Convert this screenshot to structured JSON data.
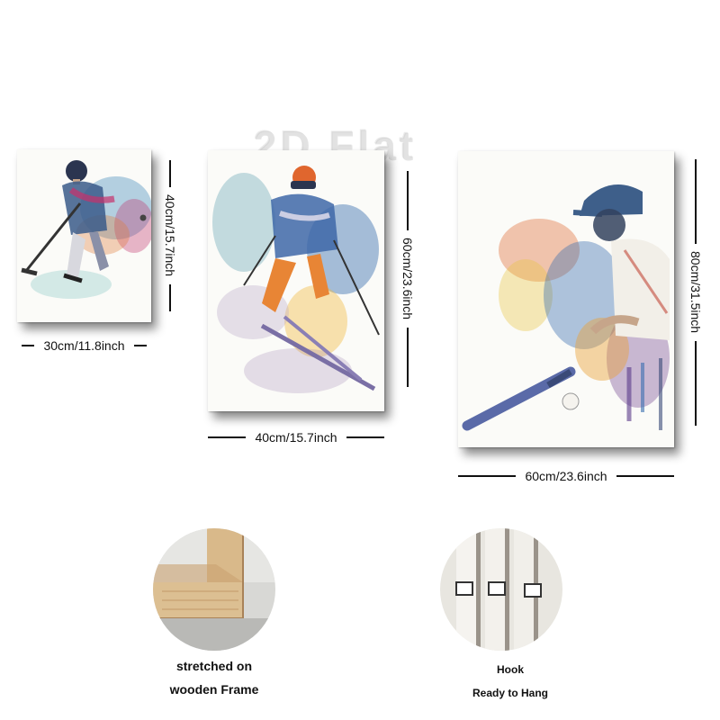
{
  "watermark": "2D Flat",
  "prints": [
    {
      "subject": "hockey-player",
      "width_label": "30cm/11.8inch",
      "height_label": "40cm/15.7inch"
    },
    {
      "subject": "skier",
      "width_label": "40cm/15.7inch",
      "height_label": "60cm/23.6inch"
    },
    {
      "subject": "baseball-batter",
      "width_label": "60cm/23.6inch",
      "height_label": "80cm/31.5inch"
    }
  ],
  "features": [
    {
      "name": "wooden-frame",
      "caption_line1": "stretched on",
      "caption_line2": "wooden Frame"
    },
    {
      "name": "hook",
      "caption_line1": "Hook",
      "caption_line2": "Ready to Hang"
    }
  ]
}
